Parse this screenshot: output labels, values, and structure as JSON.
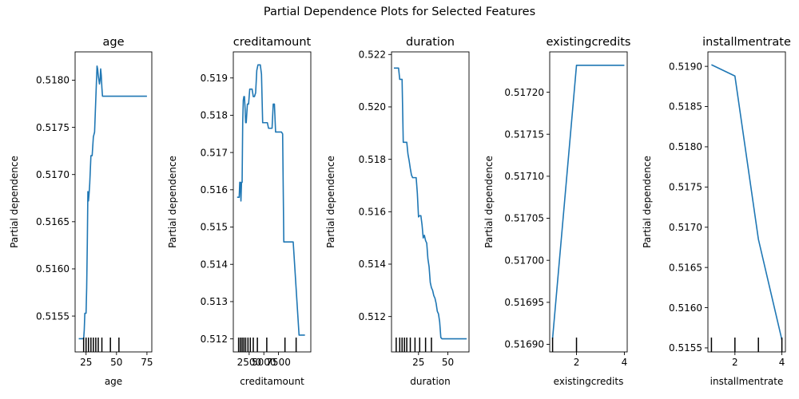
{
  "figure": {
    "title": "Partial Dependence Plots for Selected Features"
  },
  "chart_data": [
    {
      "type": "line",
      "title": "age",
      "xlabel": "age",
      "ylabel": "Partial dependence",
      "xlim": [
        16,
        79
      ],
      "ylim": [
        0.51512,
        0.5183
      ],
      "xticks": [
        25,
        50,
        75
      ],
      "yticks": [
        0.5155,
        0.516,
        0.5165,
        0.517,
        0.5175,
        0.518
      ],
      "ytick_labels": [
        "0.5155",
        "0.5160",
        "0.5165",
        "0.5170",
        "0.5175",
        "0.5180"
      ],
      "x": [
        19,
        23,
        23.5,
        24,
        25,
        25.5,
        26,
        26.5,
        27,
        27.5,
        28,
        29,
        29.5,
        30,
        31,
        32,
        33,
        34,
        34.5,
        35,
        36,
        36.5,
        37,
        37.5,
        38,
        38.5,
        39,
        40,
        45,
        50,
        60,
        75
      ],
      "y": [
        0.51526,
        0.51526,
        0.51535,
        0.51553,
        0.51553,
        0.5158,
        0.51625,
        0.51682,
        0.51672,
        0.5168,
        0.5169,
        0.5172,
        0.5172,
        0.5172,
        0.5174,
        0.51745,
        0.5178,
        0.51815,
        0.51812,
        0.51805,
        0.51796,
        0.518,
        0.51812,
        0.51805,
        0.51792,
        0.51783,
        0.51783,
        0.51783,
        0.51783,
        0.51783,
        0.51783,
        0.51783
      ],
      "rug": [
        23,
        25,
        27,
        29,
        31,
        33,
        35,
        38,
        45,
        52
      ]
    },
    {
      "type": "line",
      "title": "creditamount",
      "xlabel": "creditamount",
      "ylabel": "Partial dependence",
      "xlim": [
        -200,
        13000
      ],
      "ylim": [
        0.51165,
        0.5197
      ],
      "xticks": [
        2500,
        5000,
        7500
      ],
      "xtick_labels": [
        "2500",
        "5000",
        "7500"
      ],
      "yticks": [
        0.512,
        0.513,
        0.514,
        0.515,
        0.516,
        0.517,
        0.518,
        0.519
      ],
      "ytick_labels": [
        "0.512",
        "0.513",
        "0.514",
        "0.515",
        "0.516",
        "0.517",
        "0.518",
        "0.519"
      ],
      "x": [
        450,
        800,
        900,
        1000,
        1100,
        1200,
        1300,
        1350,
        1400,
        1500,
        1600,
        1700,
        1800,
        1900,
        2000,
        2200,
        2400,
        2600,
        2800,
        3000,
        3200,
        3400,
        3600,
        3800,
        4000,
        4200,
        4400,
        4600,
        4800,
        5000,
        5200,
        5400,
        5600,
        5800,
        6000,
        6200,
        6400,
        6600,
        6800,
        7000,
        7200,
        7400,
        7600,
        7800,
        8000,
        8200,
        8400,
        8600,
        9000,
        10000,
        11000,
        12000
      ],
      "y": [
        0.5158,
        0.5158,
        0.5162,
        0.5162,
        0.5157,
        0.5162,
        0.5162,
        0.517,
        0.5178,
        0.5184,
        0.5185,
        0.5185,
        0.5182,
        0.5178,
        0.5178,
        0.5183,
        0.5183,
        0.5187,
        0.5187,
        0.5187,
        0.5185,
        0.5185,
        0.5186,
        0.5192,
        0.51935,
        0.51935,
        0.51935,
        0.5191,
        0.5178,
        0.5178,
        0.5178,
        0.5178,
        0.5178,
        0.51765,
        0.51765,
        0.51765,
        0.51765,
        0.5183,
        0.5183,
        0.51755,
        0.51755,
        0.51755,
        0.51755,
        0.51755,
        0.51755,
        0.5175,
        0.5146,
        0.5146,
        0.5146,
        0.5146,
        0.5121,
        0.5121
      ],
      "rug": [
        700,
        1000,
        1300,
        1600,
        1900,
        2300,
        2700,
        3200,
        3900,
        5500,
        8600,
        10500
      ]
    },
    {
      "type": "line",
      "title": "duration",
      "xlabel": "duration",
      "ylabel": "Partial dependence",
      "xlim": [
        2,
        68
      ],
      "ylim": [
        0.51065,
        0.5221
      ],
      "xticks": [
        25,
        50
      ],
      "yticks": [
        0.512,
        0.514,
        0.516,
        0.518,
        0.52,
        0.522
      ],
      "ytick_labels": [
        "0.512",
        "0.514",
        "0.516",
        "0.518",
        "0.520",
        "0.522"
      ],
      "x": [
        4,
        8,
        9,
        11,
        12,
        13,
        14,
        15,
        16,
        17,
        18,
        19,
        20,
        21,
        22,
        23,
        24,
        25,
        26,
        27,
        28,
        29,
        30,
        31,
        32,
        33,
        34,
        35,
        36,
        37,
        38,
        39,
        40,
        41,
        42,
        43,
        44,
        45,
        48,
        50,
        55,
        60,
        66
      ],
      "y": [
        0.52148,
        0.52148,
        0.52105,
        0.52105,
        0.51865,
        0.51865,
        0.51865,
        0.51865,
        0.5182,
        0.51795,
        0.51765,
        0.5174,
        0.5173,
        0.5173,
        0.5173,
        0.5173,
        0.5167,
        0.5158,
        0.51585,
        0.51585,
        0.5155,
        0.515,
        0.5151,
        0.5149,
        0.5148,
        0.5142,
        0.5139,
        0.5133,
        0.5131,
        0.513,
        0.5128,
        0.5127,
        0.5125,
        0.5122,
        0.5121,
        0.5118,
        0.5112,
        0.51115,
        0.51115,
        0.51115,
        0.51115,
        0.51115,
        0.51115
      ],
      "rug": [
        6,
        9,
        11,
        13,
        15,
        18,
        22,
        26,
        31,
        36
      ]
    },
    {
      "type": "line",
      "title": "existingcredits",
      "xlabel": "existingcredits",
      "ylabel": "Partial dependence",
      "xlim": [
        0.88,
        4.12
      ],
      "ylim": [
        0.516891,
        0.517248
      ],
      "xticks": [
        2,
        4
      ],
      "yticks": [
        0.5169,
        0.51695,
        0.517,
        0.51705,
        0.5171,
        0.51715,
        0.5172
      ],
      "ytick_labels": [
        "0.51690",
        "0.51695",
        "0.51700",
        "0.51705",
        "0.51710",
        "0.51715",
        "0.51720"
      ],
      "x": [
        1,
        2,
        3,
        4
      ],
      "y": [
        0.516907,
        0.517232,
        0.517232,
        0.517232
      ],
      "rug": [
        1,
        2
      ]
    },
    {
      "type": "line",
      "title": "installmentrate",
      "xlabel": "installmentrate",
      "ylabel": "Partial dependence",
      "xlim": [
        0.85,
        4.15
      ],
      "ylim": [
        0.51545,
        0.51918
      ],
      "xticks": [
        2,
        4
      ],
      "yticks": [
        0.5155,
        0.516,
        0.5165,
        0.517,
        0.5175,
        0.518,
        0.5185,
        0.519
      ],
      "ytick_labels": [
        "0.5155",
        "0.5160",
        "0.5165",
        "0.5170",
        "0.5175",
        "0.5180",
        "0.5185",
        "0.5190"
      ],
      "x": [
        1,
        2,
        3,
        4
      ],
      "y": [
        0.51902,
        0.51888,
        0.51685,
        0.5156
      ],
      "rug": [
        1,
        2,
        3,
        4
      ]
    }
  ]
}
